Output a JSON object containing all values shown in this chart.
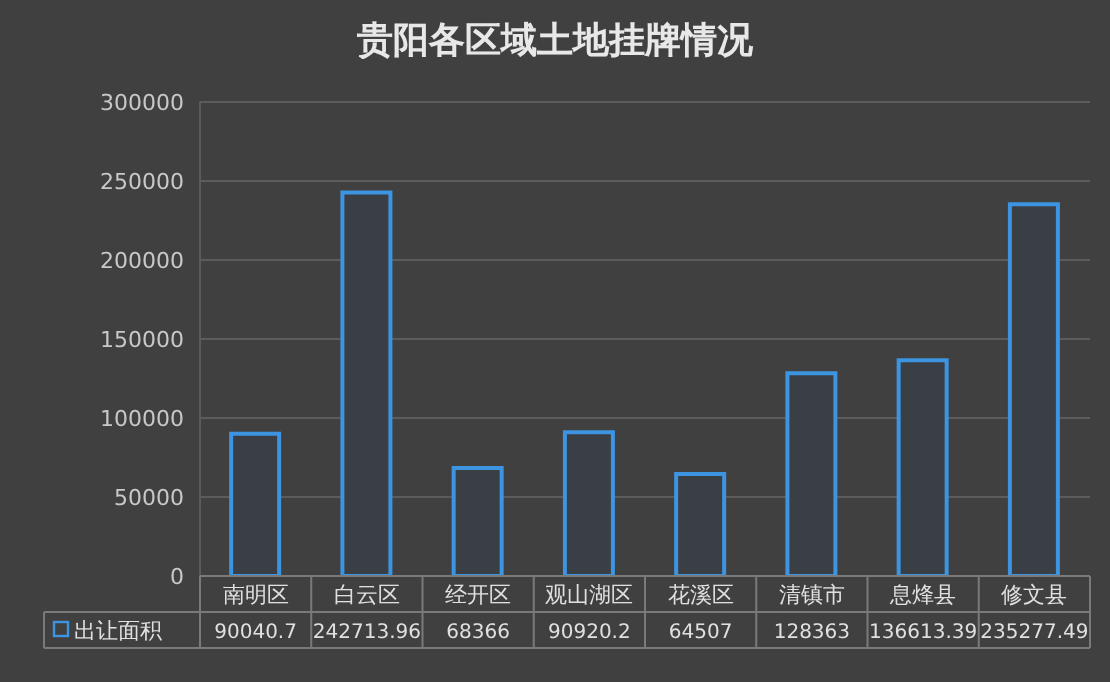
{
  "chart_data": {
    "type": "bar",
    "title": "贵阳各区域土地挂牌情况",
    "categories": [
      "南明区",
      "白云区",
      "经开区",
      "观山湖区",
      "花溪区",
      "清镇市",
      "息烽县",
      "修文县"
    ],
    "series": [
      {
        "name": "出让面积",
        "color": "#3d94e0",
        "values": [
          90040.7,
          242713.96,
          68366,
          90920.2,
          64507,
          128363,
          136613.39,
          235277.49
        ]
      }
    ],
    "ylim": [
      0,
      300000
    ],
    "yticks": [
      0,
      50000,
      100000,
      150000,
      200000,
      250000,
      300000
    ],
    "grid": "y",
    "legend": "bottom",
    "data_labels": true
  }
}
